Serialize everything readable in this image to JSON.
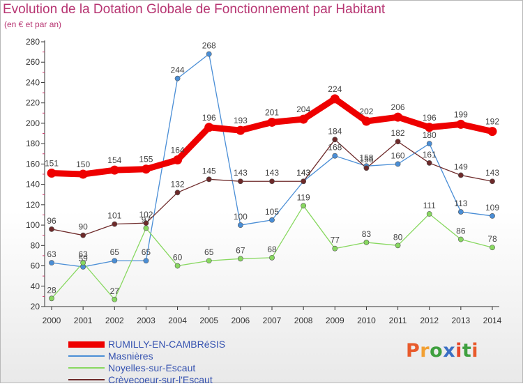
{
  "header": {
    "title": "Evolution de la Dotation Globale de Fonctionnement par Habitant",
    "subtitle": "(en € et par an)"
  },
  "colors": {
    "title": "#b73572",
    "legend_text": "#3552b0",
    "axis": "#333333",
    "logo": [
      "#e85a2b",
      "#f2a033",
      "#3fa03f",
      "#3a6fc4",
      "#e8482b",
      "#3fa03f"
    ]
  },
  "logo": {
    "text": "Proxiti",
    "letters": [
      "P",
      "r",
      "o",
      "x",
      "i",
      "t",
      "i"
    ]
  },
  "chart_data": {
    "type": "line",
    "title": "Evolution de la Dotation Globale de Fonctionnement par Habitant",
    "subtitle": "(en € et par an)",
    "xlabel": "",
    "ylabel": "",
    "categories": [
      "2000",
      "2001",
      "2002",
      "2003",
      "2004",
      "2005",
      "2006",
      "2007",
      "2008",
      "2009",
      "2010",
      "2011",
      "2012",
      "2013",
      "2014"
    ],
    "ylim": [
      20,
      280
    ],
    "yticks": [
      20,
      40,
      60,
      80,
      100,
      120,
      140,
      160,
      180,
      200,
      220,
      240,
      260,
      280
    ],
    "grid": false,
    "legend_position": "bottom-left",
    "series": [
      {
        "name": "RUMILLY-EN-CAMBRéSIS",
        "color": "#ee0000",
        "emphasis": true,
        "values": [
          151,
          150,
          154,
          155,
          164,
          196,
          193,
          201,
          204,
          224,
          202,
          206,
          196,
          199,
          192
        ]
      },
      {
        "name": "Masnières",
        "color": "#4a8ed6",
        "emphasis": false,
        "values": [
          63,
          59,
          65,
          65,
          244,
          268,
          100,
          105,
          143,
          168,
          158,
          160,
          180,
          113,
          109
        ]
      },
      {
        "name": "Noyelles-sur-Escaut",
        "color": "#88d860",
        "emphasis": false,
        "values": [
          28,
          63,
          27,
          97,
          60,
          65,
          67,
          68,
          119,
          77,
          83,
          80,
          111,
          86,
          78
        ]
      },
      {
        "name": "Crèvecoeur-sur-l'Escaut",
        "color": "#6e2a2a",
        "emphasis": false,
        "values": [
          96,
          90,
          101,
          102,
          132,
          145,
          143,
          143,
          143,
          184,
          156,
          182,
          161,
          149,
          143
        ]
      }
    ]
  }
}
